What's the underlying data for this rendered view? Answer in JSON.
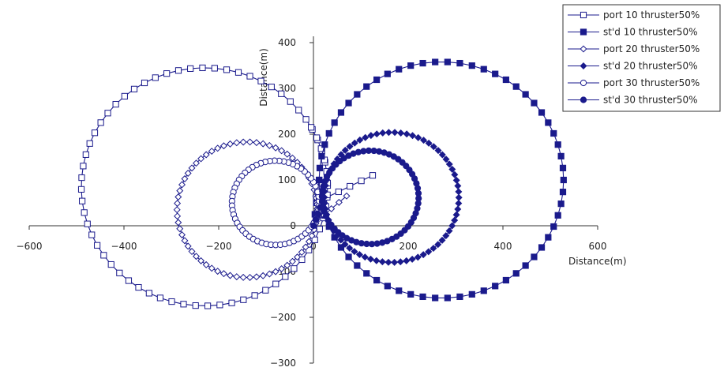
{
  "chart_data": {
    "type": "scatter",
    "title": "",
    "xlabel": "Distance(m)",
    "ylabel": "Distance(m)",
    "xlim": [
      -600,
      600
    ],
    "ylim": [
      -300,
      400
    ],
    "xticks": [
      -600,
      -400,
      -200,
      0,
      200,
      400,
      600
    ],
    "yticks": [
      -300,
      -200,
      -100,
      0,
      100,
      200,
      300,
      400
    ],
    "xtick_labels": [
      "−600",
      "−400",
      "−200",
      "0",
      "200",
      "400",
      "600"
    ],
    "ytick_labels": [
      "−300",
      "−200",
      "−100",
      "0",
      "100",
      "200",
      "300",
      "400"
    ],
    "grid": false,
    "legend_position": "top-right",
    "line_color": "#1a1a8c",
    "series": [
      {
        "name": "port 10 thruster50%",
        "marker": "square-open",
        "start": [
          125,
          110
        ],
        "center": [
          -230,
          85
        ],
        "radius": 260,
        "start_angle_deg": -5,
        "direction": "ccw",
        "sweep_deg": 395,
        "points": 70
      },
      {
        "name": "st'd 10 thruster50%",
        "marker": "square-filled",
        "start": [
          0,
          0
        ],
        "center": [
          270,
          100
        ],
        "radius": 258,
        "start_angle_deg": 180,
        "direction": "cw",
        "sweep_deg": 360,
        "points": 62
      },
      {
        "name": "port 20 thruster50%",
        "marker": "diamond-open",
        "start": [
          70,
          65
        ],
        "center": [
          -140,
          35
        ],
        "radius": 148,
        "start_angle_deg": -10,
        "direction": "ccw",
        "sweep_deg": 380,
        "points": 70
      },
      {
        "name": "st'd 20 thruster50%",
        "marker": "diamond-filled",
        "start": [
          0,
          0
        ],
        "center": [
          165,
          62
        ],
        "radius": 142,
        "start_angle_deg": 185,
        "direction": "cw",
        "sweep_deg": 360,
        "points": 70
      },
      {
        "name": "port 30 thruster50%",
        "marker": "circle-open",
        "start": [
          20,
          75
        ],
        "center": [
          -80,
          50
        ],
        "radius": 92,
        "start_angle_deg": 5,
        "direction": "ccw",
        "sweep_deg": 370,
        "points": 60
      },
      {
        "name": "st'd 30 thruster50%",
        "marker": "circle-filled",
        "start": [
          0,
          0
        ],
        "center": [
          120,
          62
        ],
        "radius": 102,
        "start_angle_deg": 185,
        "direction": "cw",
        "sweep_deg": 360,
        "points": 58
      }
    ]
  }
}
